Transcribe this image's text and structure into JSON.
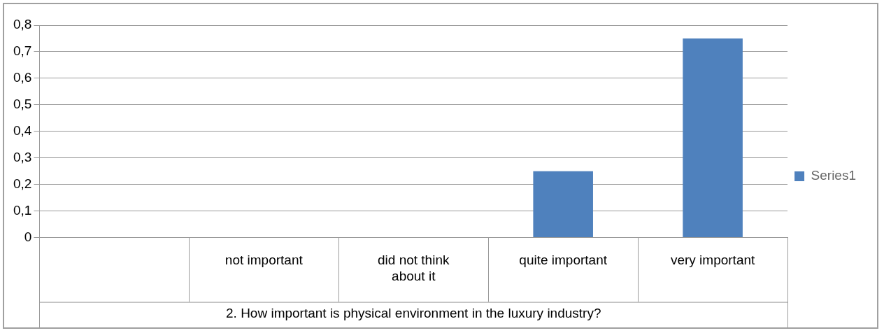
{
  "chart_data": {
    "type": "bar",
    "categories": [
      null,
      "not important",
      "did not think about it",
      "quite important",
      "very important"
    ],
    "series": [
      {
        "name": "Series1",
        "color": "#4f81bd",
        "values": [
          null,
          0,
          0,
          0.25,
          0.75
        ]
      }
    ],
    "xlabel": "2. How important is physical environment in the luxury industry?",
    "ylim": [
      0,
      0.8
    ],
    "yticks": [
      {
        "value": 0,
        "label": "0"
      },
      {
        "value": 0.1,
        "label": "0,1"
      },
      {
        "value": 0.2,
        "label": "0,2"
      },
      {
        "value": 0.3,
        "label": "0,3"
      },
      {
        "value": 0.4,
        "label": "0,4"
      },
      {
        "value": 0.5,
        "label": "0,5"
      },
      {
        "value": 0.6,
        "label": "0,6"
      },
      {
        "value": 0.7,
        "label": "0,7"
      },
      {
        "value": 0.8,
        "label": "0,8"
      }
    ],
    "grid": "y",
    "legend": "right"
  }
}
